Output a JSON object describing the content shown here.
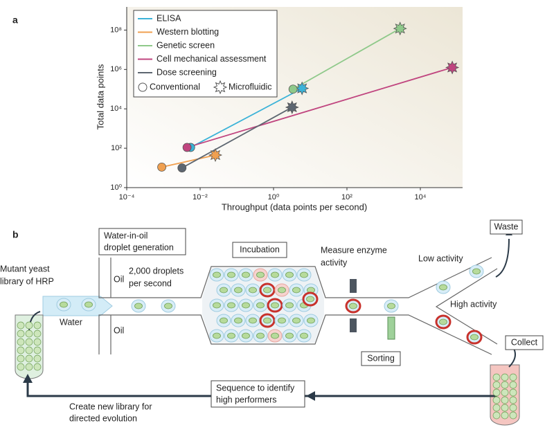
{
  "chart_data": {
    "type": "scatter",
    "panel_label": "a",
    "xlabel": "Throughput (data points per second)",
    "ylabel": "Total data points",
    "log_x": true,
    "log_y": true,
    "xlim": [
      0.0001,
      100000
    ],
    "ylim": [
      1,
      1000000000
    ],
    "xticks": [
      {
        "value": 0.0001,
        "label": "10⁻⁴"
      },
      {
        "value": 0.01,
        "label": "10⁻²"
      },
      {
        "value": 1,
        "label": "10⁰"
      },
      {
        "value": 100,
        "label": "10²"
      },
      {
        "value": 10000,
        "label": "10⁴"
      }
    ],
    "yticks": [
      {
        "value": 1,
        "label": "10⁰"
      },
      {
        "value": 100,
        "label": "10²"
      },
      {
        "value": 10000,
        "label": "10⁴"
      },
      {
        "value": 1000000,
        "label": "10⁶"
      },
      {
        "value": 100000000,
        "label": "10⁸"
      }
    ],
    "marker_labels": [
      "Conventional",
      "Microfluidic"
    ],
    "series": [
      {
        "name": "ELISA",
        "color": "#3bb3d8",
        "x": [
          0.0055,
          6
        ],
        "values": [
          110,
          110000
        ]
      },
      {
        "name": "Western blotting",
        "color": "#f0a050",
        "x": [
          0.0009,
          0.026
        ],
        "values": [
          11,
          45
        ]
      },
      {
        "name": "Genetic screen",
        "color": "#8fc98a",
        "x": [
          3.4,
          2800
        ],
        "values": [
          100000,
          120000000
        ]
      },
      {
        "name": "Cell mechanical assessment",
        "color": "#c0457f",
        "x": [
          0.0044,
          74000
        ],
        "values": [
          110,
          1260000
        ]
      },
      {
        "name": "Dose screening",
        "color": "#5d6670",
        "x": [
          0.0032,
          3.2
        ],
        "values": [
          10,
          12000
        ]
      }
    ]
  },
  "diagram": {
    "panel_label": "b",
    "droplet_generation": [
      "Water-in-oil",
      "droplet generation"
    ],
    "library": [
      "Mutant yeast",
      "library of HRP"
    ],
    "water": "Water",
    "oil_top": "Oil",
    "oil_bottom": "Oil",
    "rate": [
      "2,000 droplets",
      "per second"
    ],
    "incubation": "Incubation",
    "measure": [
      "Measure enzyme",
      "activity"
    ],
    "low_activity": "Low activity",
    "high_activity": "High activity",
    "waste": "Waste",
    "collect": "Collect",
    "sorting": "Sorting",
    "sequence": [
      "Sequence to identify",
      "high performers"
    ],
    "new_library": [
      "Create new library for",
      "directed evolution"
    ]
  }
}
